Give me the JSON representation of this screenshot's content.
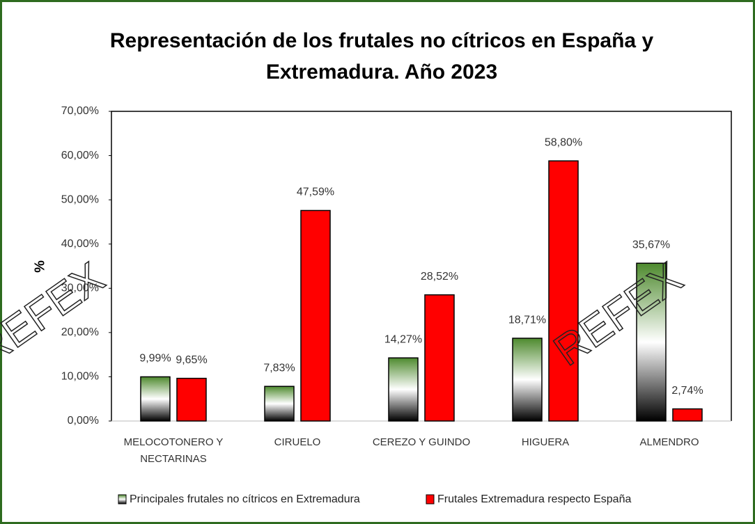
{
  "chart_data": {
    "type": "bar",
    "title": "Representación de los frutales no cítricos en España y",
    "title_line2": "Extremadura. Año 2023",
    "y_label": "%",
    "watermark": "REFEX",
    "categories": [
      "MELOCOTONERO Y NECTARINAS",
      "CIRUELO",
      "CEREZO Y GUINDO",
      "HIGUERA",
      "ALMENDRO"
    ],
    "series": [
      {
        "name": "Principales frutales no cítricos en Extremadura",
        "color": "#4e8a2e",
        "values": [
          9.99,
          7.83,
          14.27,
          18.71,
          35.67
        ],
        "value_labels": [
          "9,99%",
          "7,83%",
          "14,27%",
          "18,71%",
          "35,67%"
        ]
      },
      {
        "name": "Frutales Extremadura respecto España",
        "color": "#ff0000",
        "values": [
          9.65,
          47.59,
          28.52,
          58.8,
          2.74
        ],
        "value_labels": [
          "9,65%",
          "47,59%",
          "28,52%",
          "58,80%",
          "2,74%"
        ]
      }
    ],
    "ylim": [
      0,
      70
    ],
    "yticks": [
      {
        "value": 0,
        "label": "0,00%"
      },
      {
        "value": 10,
        "label": "10,00%"
      },
      {
        "value": 20,
        "label": "20,00%"
      },
      {
        "value": 30,
        "label": "30,00%"
      },
      {
        "value": 40,
        "label": "40,00%"
      },
      {
        "value": 50,
        "label": "50,00%"
      },
      {
        "value": 60,
        "label": "60,00%"
      },
      {
        "value": 70,
        "label": "70,00%"
      }
    ],
    "grid": false,
    "legend": "bottom"
  }
}
